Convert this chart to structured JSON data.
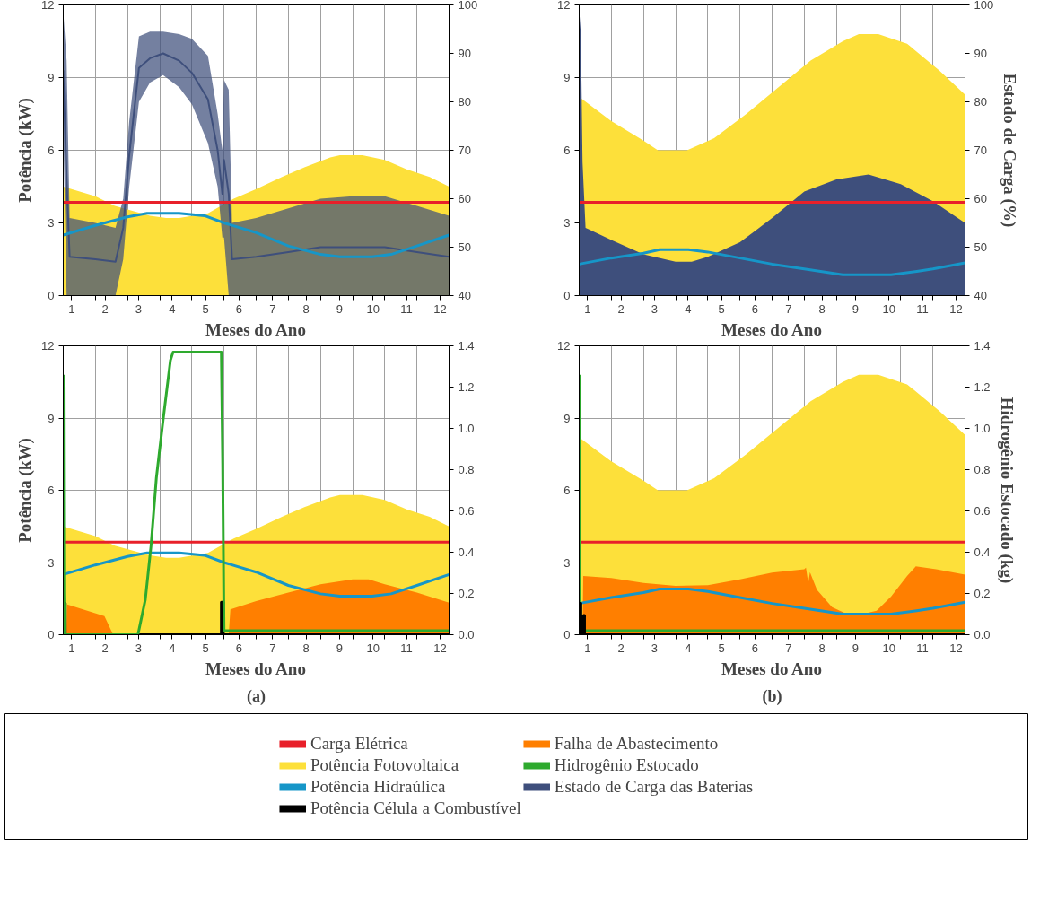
{
  "chart_data": [
    {
      "type": "area",
      "xlabel": "Meses do Ano",
      "ylabel": "Potência (kW)",
      "xlim": [
        0.75,
        12.27
      ],
      "ylim": [
        0,
        12
      ],
      "y2lim": [
        40,
        100
      ],
      "grid": true,
      "legend": "bottom",
      "xticks": [
        1,
        2,
        3,
        4,
        5,
        6,
        7,
        8,
        9,
        10,
        11,
        12,
        {
          "value": 1.71,
          "label": null
        },
        {
          "value": 2.67,
          "label": null
        },
        {
          "value": 3.63,
          "label": null
        },
        {
          "value": 4.59,
          "label": null
        },
        {
          "value": 5.55,
          "label": null
        },
        {
          "value": 6.51,
          "label": null
        },
        {
          "value": 7.47,
          "label": null
        },
        {
          "value": 8.43,
          "label": null
        },
        {
          "value": 9.39,
          "label": null
        },
        {
          "value": 10.35,
          "label": null
        },
        {
          "value": 11.31,
          "label": null
        }
      ],
      "yticks": [
        0,
        3,
        6,
        9,
        12
      ],
      "y2ticks": [
        40,
        50,
        60,
        70,
        80,
        90,
        100
      ],
      "series": [
        {
          "color": "#fde03a",
          "x": [
            0.75,
            1.71,
            2.29,
            3.34,
            3.82,
            4.21,
            5.07,
            5.84,
            6.51,
            7.28,
            7.95,
            8.72,
            9.01,
            9.68,
            10.35,
            11.02,
            11.69,
            12.27
          ],
          "values": [
            4.5,
            4.1,
            3.7,
            3.3,
            3.2,
            3.2,
            3.4,
            4.0,
            4.4,
            4.9,
            5.3,
            5.7,
            5.8,
            5.8,
            5.6,
            5.2,
            4.9,
            4.5
          ]
        },
        {
          "name": "Estado de Carga das Baterias",
          "color": "#3e4f7c",
          "axis": "y2",
          "x": [
            0.75,
            0.85,
            0.94,
            1.71,
            2.31,
            2.54,
            2.72,
            3.01,
            3.34,
            3.73,
            4.21,
            4.59,
            5.07,
            5.36,
            5.5,
            5.55,
            5.69,
            5.79,
            6.51,
            7.47,
            8.43,
            9.39,
            10.35,
            11.31,
            12.27
          ],
          "lower": [
            75,
            40,
            40,
            40,
            40,
            47.5,
            62.5,
            80,
            84,
            85.5,
            83,
            79.5,
            71.5,
            62.5,
            52,
            52,
            40,
            40,
            40,
            40,
            40,
            40,
            40,
            40,
            40
          ],
          "upper": [
            98.5,
            88.5,
            56,
            55,
            54,
            60,
            76,
            93.5,
            94.5,
            94.5,
            94,
            93,
            89.5,
            77.5,
            70,
            84.5,
            82.5,
            55,
            56,
            58,
            60,
            60.5,
            60.5,
            58.5,
            56.5
          ],
          "values": [
            86.5,
            64,
            48,
            47.5,
            47,
            54,
            69,
            87,
            89,
            90,
            88.5,
            86,
            80.5,
            70,
            61,
            68,
            61,
            47.5,
            48,
            49,
            50,
            50,
            50,
            49,
            48
          ],
          "type": "line"
        },
        {
          "type": "line",
          "color": "#e8202a",
          "x": [
            0.75,
            12.27
          ],
          "values": [
            3.85,
            3.85
          ]
        },
        {
          "type": "line",
          "color": "#1696c8",
          "x": [
            0.75,
            1.71,
            2.67,
            3.25,
            4.21,
            4.97,
            5.55,
            6.51,
            7.47,
            8.43,
            9.01,
            9.97,
            10.54,
            11.31,
            12.27
          ],
          "values": [
            2.5,
            2.9,
            3.25,
            3.4,
            3.4,
            3.3,
            3.0,
            2.6,
            2.05,
            1.7,
            1.6,
            1.6,
            1.7,
            2.05,
            2.5
          ]
        }
      ]
    },
    {
      "type": "area",
      "xlabel": "Meses do Ano",
      "y2label": "Estado de Carga (%)",
      "xlim": [
        0.75,
        12.27
      ],
      "ylim": [
        0,
        12
      ],
      "y2lim": [
        40,
        100
      ],
      "grid": true,
      "xticks": [
        1,
        2,
        3,
        4,
        5,
        6,
        7,
        8,
        9,
        10,
        11,
        12,
        {
          "value": 1.71,
          "label": null
        },
        {
          "value": 2.67,
          "label": null
        },
        {
          "value": 3.63,
          "label": null
        },
        {
          "value": 4.59,
          "label": null
        },
        {
          "value": 5.55,
          "label": null
        },
        {
          "value": 6.51,
          "label": null
        },
        {
          "value": 7.47,
          "label": null
        },
        {
          "value": 8.43,
          "label": null
        },
        {
          "value": 9.39,
          "label": null
        },
        {
          "value": 10.35,
          "label": null
        },
        {
          "value": 11.31,
          "label": null
        }
      ],
      "yticks": [
        0,
        3,
        6,
        9,
        12
      ],
      "y2ticks": [
        40,
        50,
        60,
        70,
        80,
        90,
        100
      ],
      "series": [
        {
          "color": "#fde03a",
          "x": [
            0.75,
            1.71,
            2.67,
            3.1,
            3.97,
            4.78,
            5.74,
            6.7,
            7.66,
            8.62,
            9.1,
            9.68,
            10.54,
            11.5,
            12.27
          ],
          "values": [
            8.2,
            7.2,
            6.4,
            6.0,
            6.0,
            6.5,
            7.5,
            8.6,
            9.7,
            10.5,
            10.8,
            10.8,
            10.4,
            9.3,
            8.3
          ]
        },
        {
          "color": "#3e4f7c",
          "axis": "y2",
          "x": [
            0.75,
            0.8,
            0.85,
            0.94,
            1.71,
            2.67,
            3.63,
            4.11,
            4.59,
            5.55,
            6.51,
            7.47,
            8.43,
            9.39,
            10.35,
            11.31,
            12.27
          ],
          "values": [
            99,
            94,
            67.5,
            54,
            51.5,
            48.5,
            47,
            47,
            48,
            51,
            56,
            61.5,
            64,
            65,
            63,
            59.5,
            55
          ]
        },
        {
          "type": "line",
          "color": "#e8202a",
          "x": [
            0.75,
            12.27
          ],
          "values": [
            3.85,
            3.85
          ]
        },
        {
          "type": "line",
          "color": "#1696c8",
          "x": [
            0.75,
            1.71,
            2.67,
            3.15,
            4.01,
            4.59,
            5.55,
            6.51,
            7.47,
            8.62,
            10.06,
            10.83,
            11.31,
            12.27
          ],
          "values": [
            1.3,
            1.55,
            1.75,
            1.9,
            1.9,
            1.8,
            1.55,
            1.3,
            1.1,
            0.86,
            0.86,
            1.0,
            1.1,
            1.35
          ]
        }
      ]
    },
    {
      "type": "area",
      "xlabel": "Meses do Ano",
      "ylabel": "Potência (kW)",
      "xlim": [
        0.75,
        12.27
      ],
      "ylim": [
        0,
        12
      ],
      "y2lim": [
        0,
        1.4
      ],
      "grid": true,
      "legend": "bottom",
      "annotations": [
        "(a)"
      ],
      "xticks": [
        1,
        2,
        3,
        4,
        5,
        6,
        7,
        8,
        9,
        10,
        11,
        12,
        {
          "value": 1.71,
          "label": null
        },
        {
          "value": 2.67,
          "label": null
        },
        {
          "value": 3.63,
          "label": null
        },
        {
          "value": 4.59,
          "label": null
        },
        {
          "value": 5.55,
          "label": null
        },
        {
          "value": 6.51,
          "label": null
        },
        {
          "value": 7.47,
          "label": null
        },
        {
          "value": 8.43,
          "label": null
        },
        {
          "value": 9.39,
          "label": null
        },
        {
          "value": 10.35,
          "label": null
        },
        {
          "value": 11.31,
          "label": null
        }
      ],
      "yticks": [
        0,
        3,
        6,
        9,
        12
      ],
      "y2ticks": [
        {
          "value": 0,
          "label": "0.0"
        },
        {
          "value": 0.2,
          "label": "0.2"
        },
        {
          "value": 0.4,
          "label": "0.4"
        },
        {
          "value": 0.6,
          "label": "0.6"
        },
        {
          "value": 0.8,
          "label": "0.8"
        },
        {
          "value": 1.0,
          "label": "1.0"
        },
        {
          "value": 1.2,
          "label": "1.2"
        },
        {
          "value": 1.4,
          "label": "1.4"
        }
      ],
      "series": [
        {
          "type": "line",
          "name": "Carga Elétrica",
          "color": "#e8202a",
          "x": [
            0.75,
            12.27
          ],
          "values": [
            3.85,
            3.85
          ]
        },
        {
          "name": "Potência Fotovoltaica",
          "color": "#fde03a",
          "x": [
            0.75,
            1.71,
            2.29,
            3.34,
            3.82,
            4.21,
            5.07,
            5.84,
            6.51,
            7.28,
            7.95,
            8.72,
            9.01,
            9.68,
            10.35,
            11.02,
            11.69,
            12.27
          ],
          "values": [
            4.5,
            4.1,
            3.7,
            3.3,
            3.2,
            3.2,
            3.4,
            4.0,
            4.4,
            4.9,
            5.3,
            5.7,
            5.8,
            5.8,
            5.6,
            5.2,
            4.9,
            4.5
          ]
        },
        {
          "type": "line",
          "name": "Potência Hidraúlica",
          "color": "#1696c8",
          "x": [
            0.75,
            1.71,
            2.67,
            3.25,
            4.21,
            4.97,
            5.55,
            6.51,
            7.47,
            8.43,
            9.01,
            9.97,
            10.54,
            11.31,
            12.27
          ],
          "values": [
            2.5,
            2.9,
            3.25,
            3.4,
            3.4,
            3.3,
            3.0,
            2.6,
            2.05,
            1.7,
            1.6,
            1.6,
            1.7,
            2.05,
            2.5
          ]
        },
        {
          "type": "line",
          "name": "Potência Célula a Combustível",
          "color": "#000000",
          "x": [
            0.75,
            0.75,
            0.81,
            0.81,
            5.47,
            5.47,
            5.53,
            5.53,
            12.27
          ],
          "values": [
            0,
            1.3,
            1.3,
            0,
            0,
            1.35,
            1.35,
            0,
            0
          ]
        },
        {
          "name": "Falha de Abastecimento",
          "color": "#ff7f00",
          "x": [
            0.75,
            0.85,
            0.87,
            1.98,
            2.24,
            5.69,
            5.74,
            6.51,
            7.47,
            8.43,
            9.39,
            9.87,
            10.35,
            11.31,
            12.27
          ],
          "values": [
            0,
            0,
            1.26,
            0.77,
            0,
            0,
            1.05,
            1.4,
            1.75,
            2.1,
            2.3,
            2.3,
            2.1,
            1.75,
            1.33
          ]
        },
        {
          "type": "line",
          "name": "Hidrogênio Estocado",
          "color": "#2eaa2e",
          "axis": "y2",
          "x": [
            0.75,
            0.77,
            0.79,
            2.98,
            3.2,
            3.37,
            3.53,
            3.73,
            3.95,
            4.03,
            5.47,
            5.51,
            5.55,
            12.27
          ],
          "values": [
            1.26,
            0.2,
            0,
            0,
            0.17,
            0.43,
            0.76,
            1.04,
            1.33,
            1.37,
            1.37,
            0.83,
            0.02,
            0.02
          ]
        }
      ]
    },
    {
      "type": "area",
      "xlabel": "Meses do Ano",
      "y2label": "Hidrogênio Estocado (kg)",
      "xlim": [
        0.75,
        12.27
      ],
      "ylim": [
        0,
        12
      ],
      "y2lim": [
        0,
        1.4
      ],
      "grid": true,
      "annotations": [
        "(b)"
      ],
      "xticks": [
        1,
        2,
        3,
        4,
        5,
        6,
        7,
        8,
        9,
        10,
        11,
        12,
        {
          "value": 1.71,
          "label": null
        },
        {
          "value": 2.67,
          "label": null
        },
        {
          "value": 3.63,
          "label": null
        },
        {
          "value": 4.59,
          "label": null
        },
        {
          "value": 5.55,
          "label": null
        },
        {
          "value": 6.51,
          "label": null
        },
        {
          "value": 7.47,
          "label": null
        },
        {
          "value": 8.43,
          "label": null
        },
        {
          "value": 9.39,
          "label": null
        },
        {
          "value": 10.35,
          "label": null
        },
        {
          "value": 11.31,
          "label": null
        }
      ],
      "yticks": [
        0,
        3,
        6,
        9,
        12
      ],
      "y2ticks": [
        {
          "value": 0,
          "label": "0.0"
        },
        {
          "value": 0.2,
          "label": "0.2"
        },
        {
          "value": 0.4,
          "label": "0.4"
        },
        {
          "value": 0.6,
          "label": "0.6"
        },
        {
          "value": 0.8,
          "label": "0.8"
        },
        {
          "value": 1.0,
          "label": "1.0"
        },
        {
          "value": 1.2,
          "label": "1.2"
        },
        {
          "value": 1.4,
          "label": "1.4"
        }
      ],
      "series": [
        {
          "color": "#fde03a",
          "x": [
            0.75,
            1.71,
            2.67,
            3.1,
            3.97,
            4.78,
            5.74,
            6.7,
            7.66,
            8.62,
            9.1,
            9.68,
            10.54,
            11.5,
            12.27
          ],
          "values": [
            8.2,
            7.2,
            6.4,
            6.0,
            6.0,
            6.5,
            7.5,
            8.6,
            9.7,
            10.5,
            10.8,
            10.8,
            10.4,
            9.3,
            8.3
          ]
        },
        {
          "color": "#ff7f00",
          "x": [
            0.75,
            0.85,
            0.87,
            1.71,
            2.67,
            3.63,
            4.59,
            5.55,
            6.51,
            7.47,
            7.52,
            7.59,
            7.64,
            7.85,
            8.3,
            8.75,
            9.2,
            9.63,
            10.06,
            10.54,
            10.8,
            11.41,
            12.27
          ],
          "values": [
            0,
            0,
            2.44,
            2.36,
            2.15,
            2.03,
            2.06,
            2.3,
            2.58,
            2.72,
            2.79,
            2.15,
            2.6,
            1.86,
            1.15,
            0.86,
            0.86,
            1.0,
            1.58,
            2.44,
            2.84,
            2.72,
            2.5
          ]
        },
        {
          "type": "line",
          "color": "#e8202a",
          "x": [
            0.75,
            12.27
          ],
          "values": [
            3.85,
            3.85
          ]
        },
        {
          "type": "line",
          "color": "#1696c8",
          "x": [
            0.75,
            1.71,
            2.67,
            3.15,
            4.01,
            4.59,
            5.55,
            6.51,
            7.47,
            8.62,
            10.06,
            10.83,
            11.31,
            12.27
          ],
          "values": [
            1.3,
            1.55,
            1.75,
            1.9,
            1.9,
            1.8,
            1.55,
            1.3,
            1.1,
            0.86,
            0.86,
            1.0,
            1.1,
            1.35
          ]
        },
        {
          "type": "line",
          "color": "#2eaa2e",
          "axis": "y2",
          "x": [
            0.75,
            0.77,
            0.85,
            12.27
          ],
          "values": [
            1.26,
            0.05,
            0.02,
            0.02
          ]
        },
        {
          "type": "line",
          "color": "#000000",
          "x": [
            0.75,
            0.75,
            0.8,
            0.8,
            0.88,
            0.88,
            0.91,
            0.91,
            12.27
          ],
          "values": [
            0,
            1.3,
            1.3,
            0,
            0,
            0.8,
            0.8,
            0,
            0
          ]
        }
      ]
    }
  ]
}
